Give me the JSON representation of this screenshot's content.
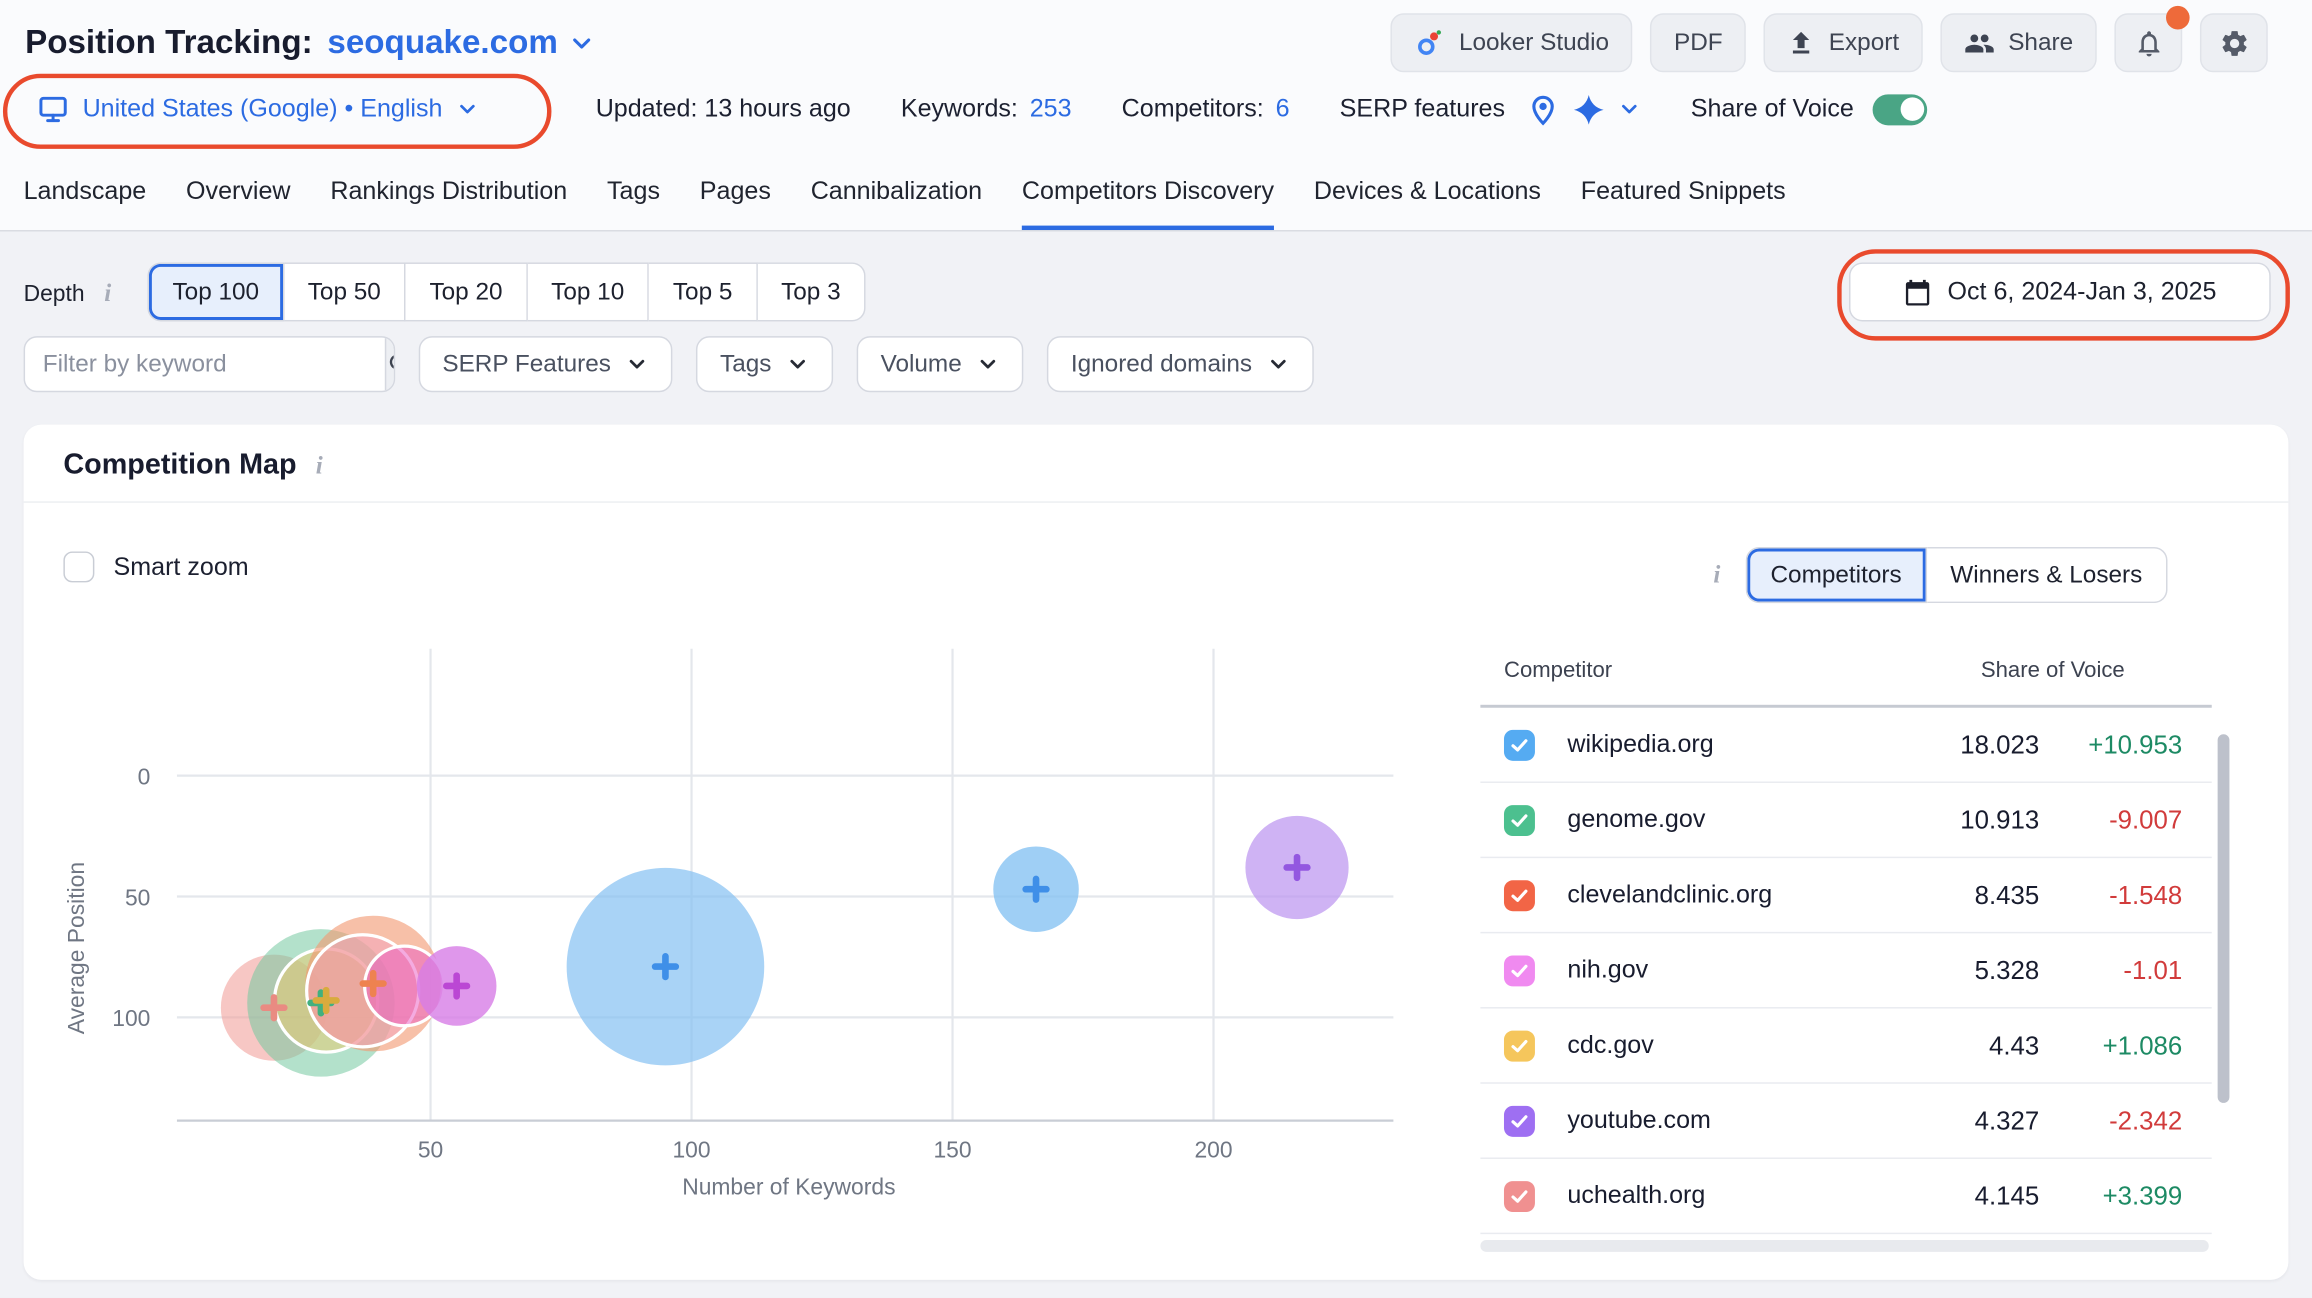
{
  "header": {
    "title": "Position Tracking:",
    "project": "seoquake.com",
    "buttons": {
      "looker": "Looker Studio",
      "pdf": "PDF",
      "export": "Export",
      "share": "Share"
    }
  },
  "meta": {
    "location": "United States (Google) • English",
    "updated": "Updated: 13 hours ago",
    "keywords_label": "Keywords:",
    "keywords_value": "253",
    "competitors_label": "Competitors:",
    "competitors_value": "6",
    "serp_label": "SERP features",
    "sov_label": "Share of Voice"
  },
  "tabs": {
    "items": [
      "Landscape",
      "Overview",
      "Rankings Distribution",
      "Tags",
      "Pages",
      "Cannibalization",
      "Competitors Discovery",
      "Devices & Locations",
      "Featured Snippets"
    ],
    "active_index": 6
  },
  "toolbar": {
    "depth_label": "Depth",
    "depth_options": [
      "Top 100",
      "Top 50",
      "Top 20",
      "Top 10",
      "Top 5",
      "Top 3"
    ],
    "depth_active": 0,
    "date_range": "Oct 6, 2024-Jan 3, 2025"
  },
  "filters": {
    "keyword_placeholder": "Filter by keyword",
    "dropdowns": [
      "SERP Features",
      "Tags",
      "Volume",
      "Ignored domains"
    ]
  },
  "panel": {
    "title": "Competition Map",
    "smart_zoom_label": "Smart zoom",
    "view_options": [
      "Competitors",
      "Winners & Losers"
    ],
    "view_active": 0
  },
  "table": {
    "columns": [
      "Competitor",
      "Share of Voice"
    ],
    "rows": [
      {
        "domain": "wikipedia.org",
        "color": "#55abf2",
        "sov": "18.023",
        "change": "+10.953",
        "trend": "up"
      },
      {
        "domain": "genome.gov",
        "color": "#4cc08f",
        "sov": "10.913",
        "change": "-9.007",
        "trend": "down"
      },
      {
        "domain": "clevelandclinic.org",
        "color": "#f26546",
        "sov": "8.435",
        "change": "-1.548",
        "trend": "down"
      },
      {
        "domain": "nih.gov",
        "color": "#f08af0",
        "sov": "5.328",
        "change": "-1.01",
        "trend": "down"
      },
      {
        "domain": "cdc.gov",
        "color": "#f5c65c",
        "sov": "4.43",
        "change": "+1.086",
        "trend": "up"
      },
      {
        "domain": "youtube.com",
        "color": "#9e6ff2",
        "sov": "4.327",
        "change": "-2.342",
        "trend": "down"
      },
      {
        "domain": "uchealth.org",
        "color": "#f09090",
        "sov": "4.145",
        "change": "+3.399",
        "trend": "up"
      }
    ]
  },
  "chart_data": {
    "type": "scatter",
    "subtype": "bubble",
    "title": "Competition Map",
    "xlabel": "Number of Keywords",
    "ylabel": "Average Position",
    "x_ticks": [
      50,
      100,
      150,
      200
    ],
    "y_ticks": [
      0,
      50,
      100
    ],
    "xlim": [
      0,
      240
    ],
    "ylim": [
      0,
      145
    ],
    "y_inverted": true,
    "grid": true,
    "bubbles": [
      {
        "name": "salmon",
        "x": 20,
        "y": 96,
        "r": 36,
        "fill": "#f2a19c",
        "opacity": 0.6,
        "stroke": null,
        "plus": "#e98b82"
      },
      {
        "name": "green",
        "x": 29,
        "y": 94,
        "r": 50,
        "fill": "#74c9a0",
        "opacity": 0.55,
        "stroke": null,
        "plus": "#41b07f"
      },
      {
        "name": "yellow",
        "x": 30,
        "y": 93,
        "r": 35,
        "fill": "#e9c96b",
        "opacity": 0.5,
        "stroke": "#ffffff",
        "plus": "#d8ab3e"
      },
      {
        "name": "orange",
        "x": 39,
        "y": 86,
        "r": 46,
        "fill": "#f29a72",
        "opacity": 0.62,
        "stroke": null,
        "plus": "#ee8250"
      },
      {
        "name": "pink",
        "x": 37,
        "y": 89,
        "r": 38,
        "fill": "#f2a0c0",
        "opacity": 0.45,
        "stroke": "#ffffff",
        "plus": null
      },
      {
        "name": "magenta",
        "x": 45,
        "y": 87,
        "r": 27,
        "fill": "#e957c1",
        "opacity": 0.5,
        "stroke": "#ffffff",
        "plus": null
      },
      {
        "name": "orchid",
        "x": 55,
        "y": 87,
        "r": 27,
        "fill": "#d77de6",
        "opacity": 0.8,
        "stroke": null,
        "plus": "#bb47d4"
      },
      {
        "name": "blue-large",
        "x": 95,
        "y": 79,
        "r": 67,
        "fill": "#84c1f2",
        "opacity": 0.7,
        "stroke": null,
        "plus": "#3f8fe8"
      },
      {
        "name": "blue-medium",
        "x": 166,
        "y": 47,
        "r": 29,
        "fill": "#84c1f2",
        "opacity": 0.78,
        "stroke": null,
        "plus": "#3f8fe8"
      },
      {
        "name": "purple",
        "x": 216,
        "y": 38,
        "r": 35,
        "fill": "#bd95f0",
        "opacity": 0.72,
        "stroke": null,
        "plus": "#9357e0"
      }
    ]
  },
  "colors": {
    "accent_blue": "#2c6be2",
    "annotation_red": "#e94a2d",
    "positive": "#1d8a64",
    "negative": "#d13b3b",
    "toggle_green": "#4aa585",
    "badge_orange": "#ee6a3a"
  }
}
